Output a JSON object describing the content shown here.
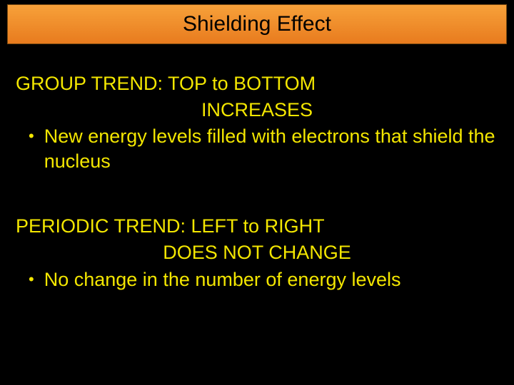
{
  "title": "Shielding Effect",
  "colors": {
    "background": "#000000",
    "text": "#f3e600",
    "title_text": "#000000",
    "title_bar_gradient_top": "#f7a13a",
    "title_bar_gradient_bottom": "#e87b1e",
    "title_bar_border": "#7a4a10"
  },
  "typography": {
    "font_family": "Comic Sans MS",
    "title_fontsize": 30,
    "body_fontsize": 27
  },
  "section1": {
    "heading": "GROUP TREND: TOP to BOTTOM",
    "result": "INCREASES",
    "bullet": "New energy levels filled with electrons that shield the nucleus"
  },
  "section2": {
    "heading": "PERIODIC TREND: LEFT to RIGHT",
    "result": "DOES NOT CHANGE",
    "bullet": "No change in the number of energy levels"
  }
}
